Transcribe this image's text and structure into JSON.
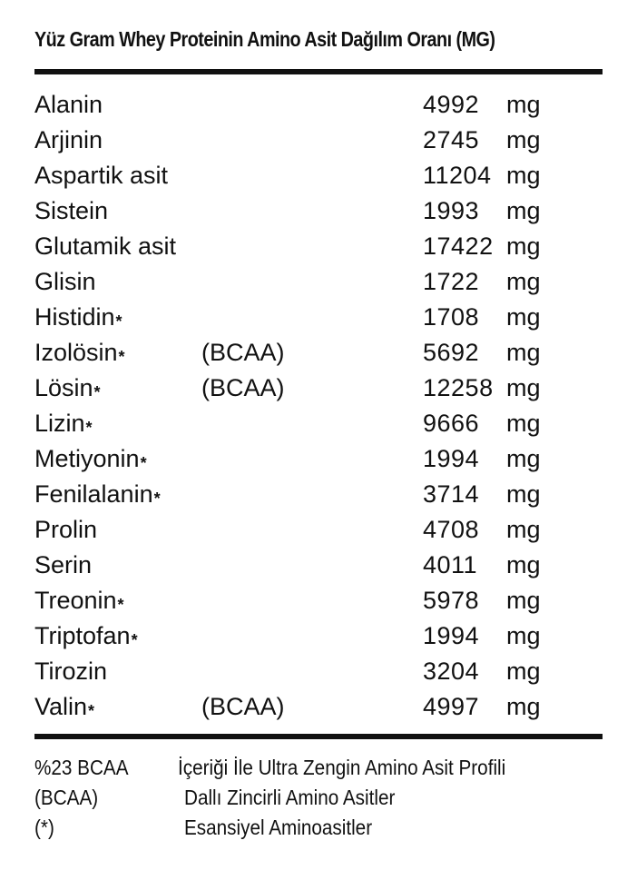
{
  "title": "Yüz Gram Whey Proteinin Amino Asit Dağılım Oranı (MG)",
  "unit": "mg",
  "rows": [
    {
      "name": "Alanin",
      "star": "",
      "tag": "",
      "value": "4992"
    },
    {
      "name": "Arjinin",
      "star": "",
      "tag": "",
      "value": "2745"
    },
    {
      "name": "Aspartik asit",
      "star": "",
      "tag": "",
      "value": "11204"
    },
    {
      "name": "Sistein",
      "star": "",
      "tag": "",
      "value": "1993"
    },
    {
      "name": "Glutamik asit",
      "star": "",
      "tag": "",
      "value": "17422"
    },
    {
      "name": "Glisin",
      "star": "",
      "tag": "",
      "value": "1722"
    },
    {
      "name": "Histidin",
      "star": "*",
      "tag": "",
      "value": "1708"
    },
    {
      "name": "Izolösin",
      "star": "*",
      "tag": "(BCAA)",
      "value": "5692"
    },
    {
      "name": "Lösin",
      "star": "*",
      "tag": "(BCAA)",
      "value": "12258"
    },
    {
      "name": "Lizin",
      "star": "*",
      "tag": "",
      "value": "9666"
    },
    {
      "name": "Metiyonin",
      "star": "*",
      "tag": "",
      "value": "1994"
    },
    {
      "name": "Fenilalanin",
      "star": "*",
      "tag": "",
      "value": "3714"
    },
    {
      "name": "Prolin",
      "star": "",
      "tag": "",
      "value": "4708"
    },
    {
      "name": "Serin",
      "star": "",
      "tag": "",
      "value": "4011"
    },
    {
      "name": "Treonin",
      "star": "*",
      "tag": "",
      "value": "5978"
    },
    {
      "name": "Triptofan",
      "star": "*",
      "tag": "",
      "value": "1994"
    },
    {
      "name": "Tirozin",
      "star": "",
      "tag": "",
      "value": "3204"
    },
    {
      "name": "Valin",
      "star": "*",
      "tag": "(BCAA)",
      "value": "4997"
    }
  ],
  "footnotes": [
    {
      "key": "%23 BCAA",
      "text": "İçeriği İle Ultra Zengin Amino Asit Profili"
    },
    {
      "key": "(BCAA)",
      "text": "Dallı Zincirli Amino Asitler"
    },
    {
      "key": "(*)",
      "text": "Esansiyel Aminoasitler"
    }
  ]
}
